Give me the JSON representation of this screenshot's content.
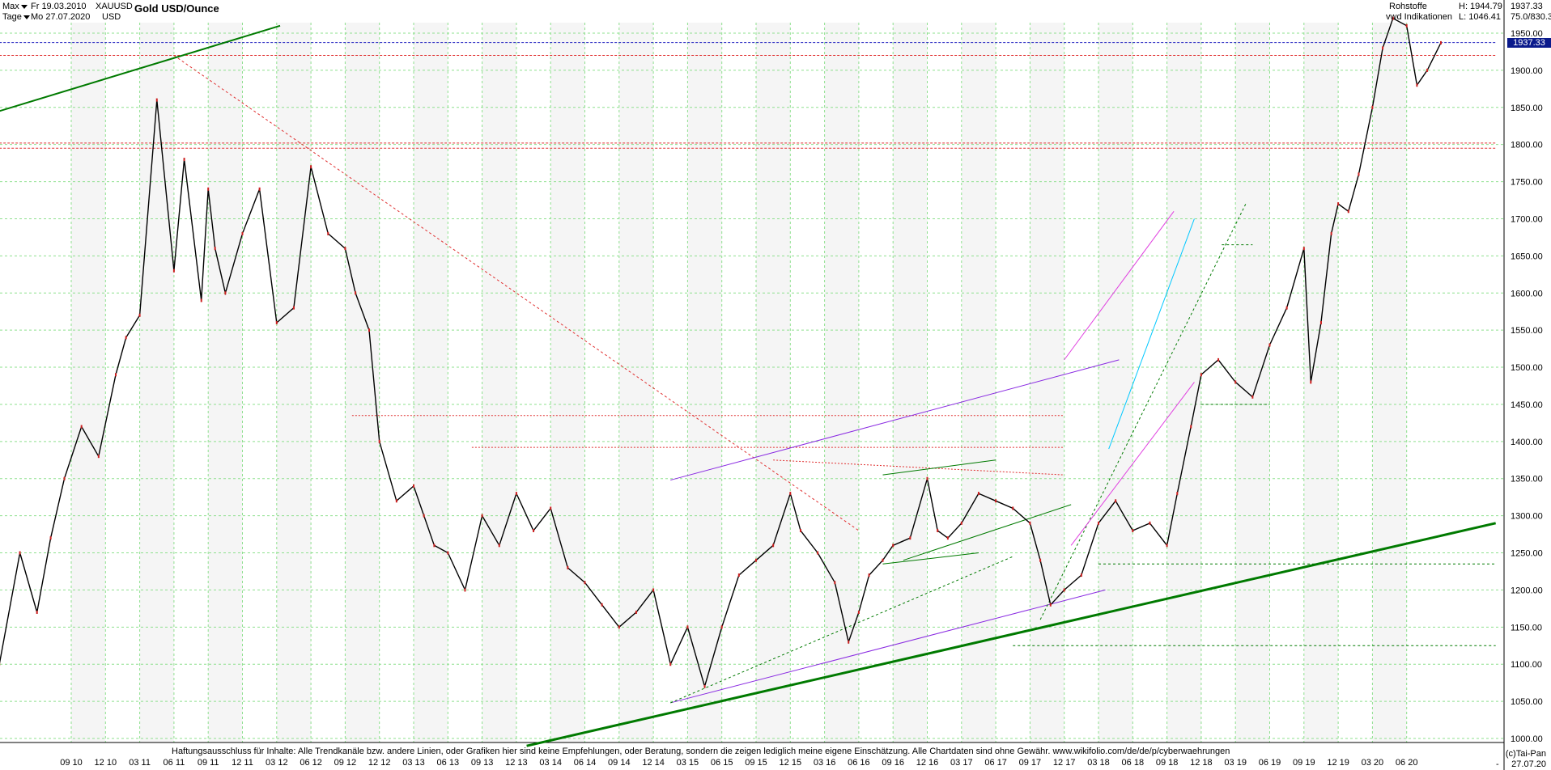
{
  "header": {
    "range_label": "Max",
    "period_label": "Tage",
    "start_date": "Fr 19.03.2010",
    "end_date": "Mo 27.07.2020",
    "symbol": "XAUUSD",
    "currency": "USD",
    "title": "Gold USD/Ounce",
    "category": "Rohstoffe",
    "source": "vwd Indikationen",
    "high_label": "H: 1944.79",
    "low_label": "L: 1046.41",
    "last_price": "1937.33",
    "volume_label": "75.0/830.3"
  },
  "footer": {
    "disclaimer": "Haftungsausschluss für Inhalte: Alle Trendkanäle bzw. andere Linien, oder Grafiken hier sind keine Empfehlungen, oder Beratung, sondern die zeigen lediglich meine eigene Einschätzung. Alle Chartdaten sind ohne Gewähr.  www.wikifolio.com/de/de/p/cyberwaehrungen",
    "copyright": "(c)Tai-Pan",
    "date_bottom": "27.07.20",
    "dash": "-"
  },
  "price_tag": "1937.33",
  "colors": {
    "candle_line": "#000000",
    "trend_green": "#007a00",
    "support_purple": "#8a2be2",
    "channel_magenta": "#e040e0",
    "cyan": "#00c8ff",
    "resistance_red": "#e03030",
    "grid": "#8ee08e",
    "price_tag_bg": "#0a1a8c"
  },
  "chart_data": {
    "type": "line",
    "title": "Gold USD/Ounce",
    "xlabel": "",
    "ylabel": "",
    "ylim": [
      990,
      1965
    ],
    "grid": true,
    "y_ticks": [
      1000,
      1050,
      1100,
      1150,
      1200,
      1250,
      1300,
      1350,
      1400,
      1450,
      1500,
      1550,
      1600,
      1650,
      1700,
      1750,
      1800,
      1850,
      1900,
      1950
    ],
    "x_ticks": [
      "09 10",
      "12 10",
      "03 11",
      "06 11",
      "09 11",
      "12 11",
      "03 12",
      "06 12",
      "09 12",
      "12 12",
      "03 13",
      "06 13",
      "09 13",
      "12 13",
      "03 14",
      "06 14",
      "09 14",
      "12 14",
      "03 15",
      "06 15",
      "09 15",
      "12 15",
      "03 16",
      "06 16",
      "09 16",
      "12 16",
      "03 17",
      "06 17",
      "09 17",
      "12 17",
      "03 18",
      "06 18",
      "09 18",
      "12 18",
      "03 19",
      "06 19",
      "09 19",
      "12 19",
      "03 20",
      "06 20"
    ],
    "x_tick_index": [
      0,
      1,
      2,
      3,
      4,
      5,
      6,
      7,
      8,
      9,
      10,
      11,
      12,
      13,
      14,
      15,
      16,
      17,
      18,
      19,
      20,
      21,
      22,
      23,
      24,
      25,
      26,
      27,
      28,
      29,
      30,
      31,
      32,
      33,
      34,
      35,
      36,
      37,
      38,
      39
    ],
    "series": [
      {
        "x": [
          -2.1,
          -1.5,
          -1.0,
          -0.6,
          -0.2,
          0.3,
          0.8,
          1.3,
          1.6,
          2.0,
          2.5,
          3.0,
          3.3,
          3.8,
          4.0,
          4.2,
          4.5,
          5.0,
          5.5,
          6.0,
          6.5,
          7.0,
          7.5,
          8.0,
          8.3,
          8.7,
          9.0,
          9.5,
          10.0,
          10.3,
          10.6,
          11.0,
          11.5,
          12.0,
          12.5,
          13.0,
          13.5,
          14.0,
          14.5,
          15.0,
          15.5,
          16.0,
          16.5,
          17.0,
          17.5,
          18.0,
          18.5,
          19.0,
          19.5,
          20.0,
          20.5,
          21.0,
          21.3,
          21.8,
          22.3,
          22.7,
          23.0,
          23.3,
          23.7,
          24.0,
          24.5,
          25.0,
          25.3,
          25.6,
          26.0,
          26.5,
          27.0,
          27.5,
          28.0,
          28.3,
          28.6,
          29.0,
          29.5,
          30.0,
          30.5,
          31.0,
          31.5,
          32.0,
          32.3,
          32.7,
          33.0,
          33.5,
          34.0,
          34.5,
          35.0,
          35.5,
          36.0,
          36.2,
          36.5,
          36.8,
          37.0,
          37.3,
          37.6,
          38.0,
          38.3,
          38.6,
          39.0,
          39.3,
          39.6,
          40.0
        ],
        "y": [
          1100,
          1250,
          1170,
          1270,
          1350,
          1420,
          1380,
          1490,
          1540,
          1570,
          1860,
          1630,
          1780,
          1590,
          1740,
          1660,
          1600,
          1680,
          1740,
          1560,
          1580,
          1770,
          1680,
          1660,
          1600,
          1550,
          1400,
          1320,
          1340,
          1300,
          1260,
          1250,
          1200,
          1300,
          1260,
          1330,
          1280,
          1310,
          1230,
          1210,
          1180,
          1150,
          1170,
          1200,
          1100,
          1150,
          1070,
          1150,
          1220,
          1240,
          1260,
          1330,
          1280,
          1250,
          1210,
          1130,
          1170,
          1220,
          1240,
          1260,
          1270,
          1350,
          1280,
          1270,
          1290,
          1330,
          1320,
          1310,
          1290,
          1240,
          1180,
          1200,
          1220,
          1290,
          1320,
          1280,
          1290,
          1260,
          1330,
          1420,
          1490,
          1510,
          1480,
          1460,
          1530,
          1580,
          1660,
          1480,
          1560,
          1680,
          1720,
          1710,
          1760,
          1850,
          1930,
          1970,
          1960,
          1880,
          1900,
          1937
        ]
      }
    ],
    "annotations": [
      "long-term green uptrend lines",
      "purple support channel",
      "magenta and cyan trend channels",
      "red dashed resistance levels near 1920 and 1800",
      "blue dashed line at 1937.33"
    ]
  }
}
